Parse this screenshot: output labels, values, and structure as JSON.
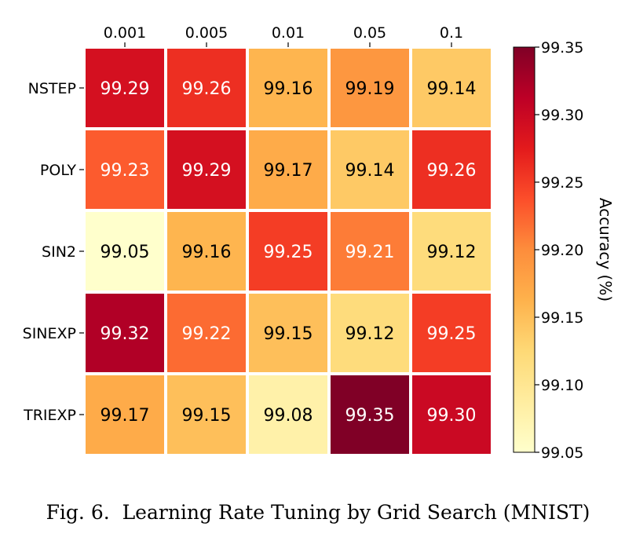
{
  "caption": "Fig. 6.  Learning Rate Tuning by Grid Search (MNIST)",
  "chart_data": {
    "type": "heatmap",
    "x_tick_labels": [
      "0.001",
      "0.005",
      "0.01",
      "0.05",
      "0.1"
    ],
    "y_tick_labels": [
      "NSTEP",
      "POLY",
      "SIN2",
      "SINEXP",
      "TRIEXP"
    ],
    "values": [
      [
        99.29,
        99.26,
        99.16,
        99.19,
        99.14
      ],
      [
        99.23,
        99.29,
        99.17,
        99.14,
        99.26
      ],
      [
        99.05,
        99.16,
        99.25,
        99.21,
        99.12
      ],
      [
        99.32,
        99.22,
        99.15,
        99.12,
        99.25
      ],
      [
        99.17,
        99.15,
        99.08,
        99.35,
        99.3
      ]
    ],
    "value_labels": [
      [
        "99.29",
        "99.26",
        "99.16",
        "99.19",
        "99.14"
      ],
      [
        "99.23",
        "99.29",
        "99.17",
        "99.14",
        "99.26"
      ],
      [
        "99.05",
        "99.16",
        "99.25",
        "99.21",
        "99.12"
      ],
      [
        "99.32",
        "99.22",
        "99.15",
        "99.12",
        "99.25"
      ],
      [
        "99.17",
        "99.15",
        "99.08",
        "99.35",
        "99.30"
      ]
    ],
    "x_axis_position": "top",
    "colorbar": {
      "label": "Accuracy (%)",
      "range": [
        99.05,
        99.35
      ],
      "ticks": [
        99.05,
        99.1,
        99.15,
        99.2,
        99.25,
        99.3,
        99.35
      ],
      "tick_labels": [
        "99.05",
        "99.10",
        "99.15",
        "99.20",
        "99.25",
        "99.30",
        "99.35"
      ]
    },
    "colormap": "YlOrRd",
    "colormap_stops": [
      "#ffffcc",
      "#ffeda0",
      "#fed976",
      "#feb24c",
      "#fd8d3c",
      "#fc4e2a",
      "#e31a1c",
      "#bd0026",
      "#800026"
    ],
    "cell_border_color": "#ffffff",
    "text_colors": {
      "dark_cells": "#ffffff",
      "light_cells": "#000000"
    }
  }
}
